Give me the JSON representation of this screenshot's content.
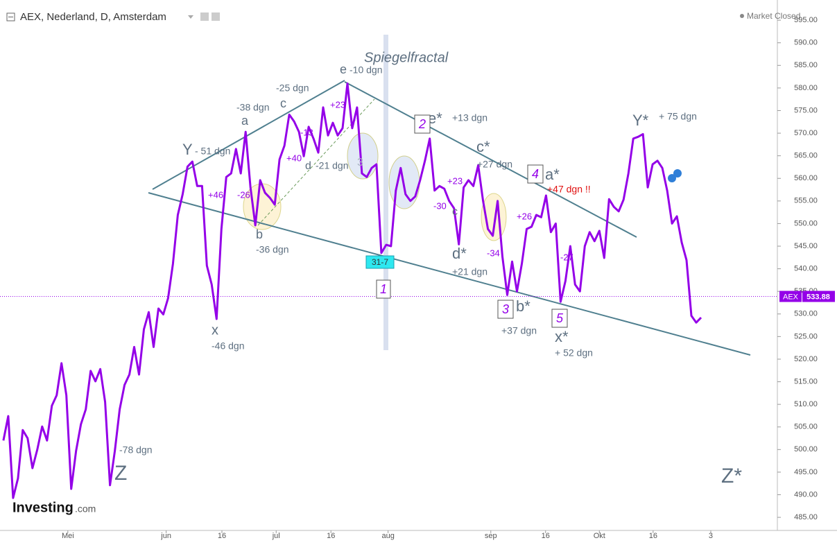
{
  "header": {
    "title": "AEX, Nederland, D, Amsterdam",
    "status": "Market Closed"
  },
  "chart_data": {
    "type": "line",
    "series": [
      {
        "name": "AEX",
        "color": "#9400e8",
        "values": [
          502.0,
          507.4,
          489.3,
          493.6,
          504.3,
          502.5,
          495.9,
          500.0,
          505.1,
          502.0,
          509.7,
          512.0,
          519.1,
          512.0,
          491.3,
          499.7,
          505.6,
          508.9,
          517.4,
          515.1,
          517.8,
          510.5,
          492.1,
          499.7,
          508.9,
          514.3,
          516.6,
          522.7,
          516.6,
          526.6,
          530.4,
          522.7,
          531.2,
          529.9,
          533.5,
          541.1,
          551.9,
          556.5,
          562.6,
          563.7,
          558.3,
          558.3,
          540.7,
          536.5,
          528.9,
          548.8,
          560.3,
          561.1,
          566.5,
          561.1,
          570.3,
          558.0,
          549.6,
          559.6,
          556.8,
          555.7,
          554.2,
          564.2,
          567.2,
          574.1,
          572.6,
          570.3,
          564.9,
          571.4,
          568.8,
          565.7,
          575.7,
          569.5,
          572.3,
          569.5,
          571.1,
          581.0,
          571.1,
          575.7,
          561.1,
          560.3,
          562.3,
          563.1,
          543.5,
          545.3,
          545.0,
          557.3,
          562.3,
          556.5,
          555.0,
          556.0,
          559.6,
          563.9,
          568.8,
          557.3,
          558.3,
          557.7,
          555.0,
          553.4,
          545.4,
          558.0,
          559.6,
          558.3,
          562.9,
          555.0,
          548.8,
          547.3,
          555.0,
          542.7,
          534.2,
          541.6,
          535.0,
          541.1,
          548.8,
          549.3,
          551.9,
          551.4,
          556.2,
          548.1,
          550.0,
          532.7,
          537.3,
          545.0,
          536.5,
          535.0,
          545.0,
          548.1,
          546.1,
          548.4,
          542.4,
          555.4,
          553.7,
          552.7,
          555.3,
          561.1,
          568.8,
          569.2,
          569.8,
          558.0,
          563.1,
          563.9,
          562.3,
          557.3,
          550.0,
          551.6,
          545.8,
          541.9,
          529.6,
          528.1,
          529.2
        ]
      }
    ],
    "last_price": 533.88,
    "xlim": [
      -0.7,
      159.6
    ],
    "xticks": [
      {
        "value": 13.3,
        "label": "Mei"
      },
      {
        "value": 33.6,
        "label": "jun"
      },
      {
        "value": 45.1,
        "label": "16"
      },
      {
        "value": 56.3,
        "label": "jul"
      },
      {
        "value": 67.6,
        "label": "16"
      },
      {
        "value": 79.4,
        "label": "aug"
      },
      {
        "value": 100.6,
        "label": "sep"
      },
      {
        "value": 111.9,
        "label": "16"
      },
      {
        "value": 123,
        "label": "Okt"
      },
      {
        "value": 134.1,
        "label": "16"
      },
      {
        "value": 146,
        "label": "3"
      }
    ],
    "ylim": [
      482.1,
      598.7
    ],
    "yticks": [
      {
        "value": 485,
        "label": "485.00"
      },
      {
        "value": 490,
        "label": "490.00"
      },
      {
        "value": 495,
        "label": "495.00"
      },
      {
        "value": 500,
        "label": "500.00"
      },
      {
        "value": 505,
        "label": "505.00"
      },
      {
        "value": 510,
        "label": "510.00"
      },
      {
        "value": 515,
        "label": "515.00"
      },
      {
        "value": 520,
        "label": "520.00"
      },
      {
        "value": 525,
        "label": "525.00"
      },
      {
        "value": 530,
        "label": "530.00"
      },
      {
        "value": 535,
        "label": "535.00"
      },
      {
        "value": 540,
        "label": "540.00"
      },
      {
        "value": 545,
        "label": "545.00"
      },
      {
        "value": 550,
        "label": "550.00"
      },
      {
        "value": 555,
        "label": "555.00"
      },
      {
        "value": 560,
        "label": "560.00"
      },
      {
        "value": 565,
        "label": "565.00"
      },
      {
        "value": 570,
        "label": "570.00"
      },
      {
        "value": 575,
        "label": "575.00"
      },
      {
        "value": 580,
        "label": "580.00"
      },
      {
        "value": 585,
        "label": "585.00"
      },
      {
        "value": 590,
        "label": "590.00"
      },
      {
        "value": 595,
        "label": "595.00"
      }
    ],
    "grid": false,
    "annotations": [
      {
        "text": "Spiegelfractal",
        "color": "#5d6f80"
      },
      {
        "text": "e",
        "color": "#5d6f80"
      },
      {
        "text": "-10 dgn",
        "color": "#5d6f80"
      },
      {
        "text": "-25 dgn",
        "color": "#5d6f80"
      },
      {
        "text": "-38 dgn",
        "color": "#5d6f80"
      },
      {
        "text": "c",
        "color": "#5d6f80"
      },
      {
        "text": "a",
        "color": "#5d6f80"
      },
      {
        "text": "+23",
        "color": "#9400e8"
      },
      {
        "text": "e*",
        "color": "#5d6f80"
      },
      {
        "text": "+13 dgn",
        "color": "#5d6f80"
      },
      {
        "text": "Y*",
        "color": "#5d6f80"
      },
      {
        "text": "+ 75 dgn",
        "color": "#5d6f80"
      },
      {
        "text": "Y",
        "color": "#5d6f80"
      },
      {
        "text": "- 51 dgn",
        "color": "#5d6f80"
      },
      {
        "text": "-13",
        "color": "#9400e8"
      },
      {
        "text": "c*",
        "color": "#5d6f80"
      },
      {
        "text": "+40",
        "color": "#9400e8"
      },
      {
        "text": "d",
        "color": "#5d6f80"
      },
      {
        "text": "-21 dgn",
        "color": "#5d6f80"
      },
      {
        "text": "3",
        "color": "#a8b4c0"
      },
      {
        "text": "+27 dgn",
        "color": "#5d6f80"
      },
      {
        "text": "a*",
        "color": "#5d6f80"
      },
      {
        "text": "+47 dgn !!",
        "color": "#e01010"
      },
      {
        "text": "+23",
        "color": "#9400e8"
      },
      {
        "text": "+46",
        "color": "#9400e8"
      },
      {
        "text": "-26",
        "color": "#9400e8"
      },
      {
        "text": "-30",
        "color": "#9400e8"
      },
      {
        "text": "c",
        "color": "#5d6f80"
      },
      {
        "text": "b",
        "color": "#5d6f80"
      },
      {
        "text": "-36 dgn",
        "color": "#5d6f80"
      },
      {
        "text": "+26",
        "color": "#9400e8"
      },
      {
        "text": "d*",
        "color": "#5d6f80"
      },
      {
        "text": "-34",
        "color": "#9400e8"
      },
      {
        "text": "-27",
        "color": "#9400e8"
      },
      {
        "text": "+21 dgn",
        "color": "#5d6f80"
      },
      {
        "text": "b*",
        "color": "#5d6f80"
      },
      {
        "text": "+37 dgn",
        "color": "#5d6f80"
      },
      {
        "text": "x",
        "color": "#5d6f80"
      },
      {
        "text": "-46 dgn",
        "color": "#5d6f80"
      },
      {
        "text": "x*",
        "color": "#5d6f80"
      },
      {
        "text": "+ 52 dgn",
        "color": "#5d6f80"
      },
      {
        "text": "-78 dgn",
        "color": "#5d6f80"
      },
      {
        "text": "Z",
        "color": "#5d6f80"
      },
      {
        "text": "Z*",
        "color": "#5d6f80"
      }
    ],
    "boxes": [
      "1",
      "2",
      "3",
      "4",
      "5"
    ],
    "date_marker": "31-7"
  },
  "watermark": {
    "brand": "Investing",
    "suffix": ".com"
  }
}
